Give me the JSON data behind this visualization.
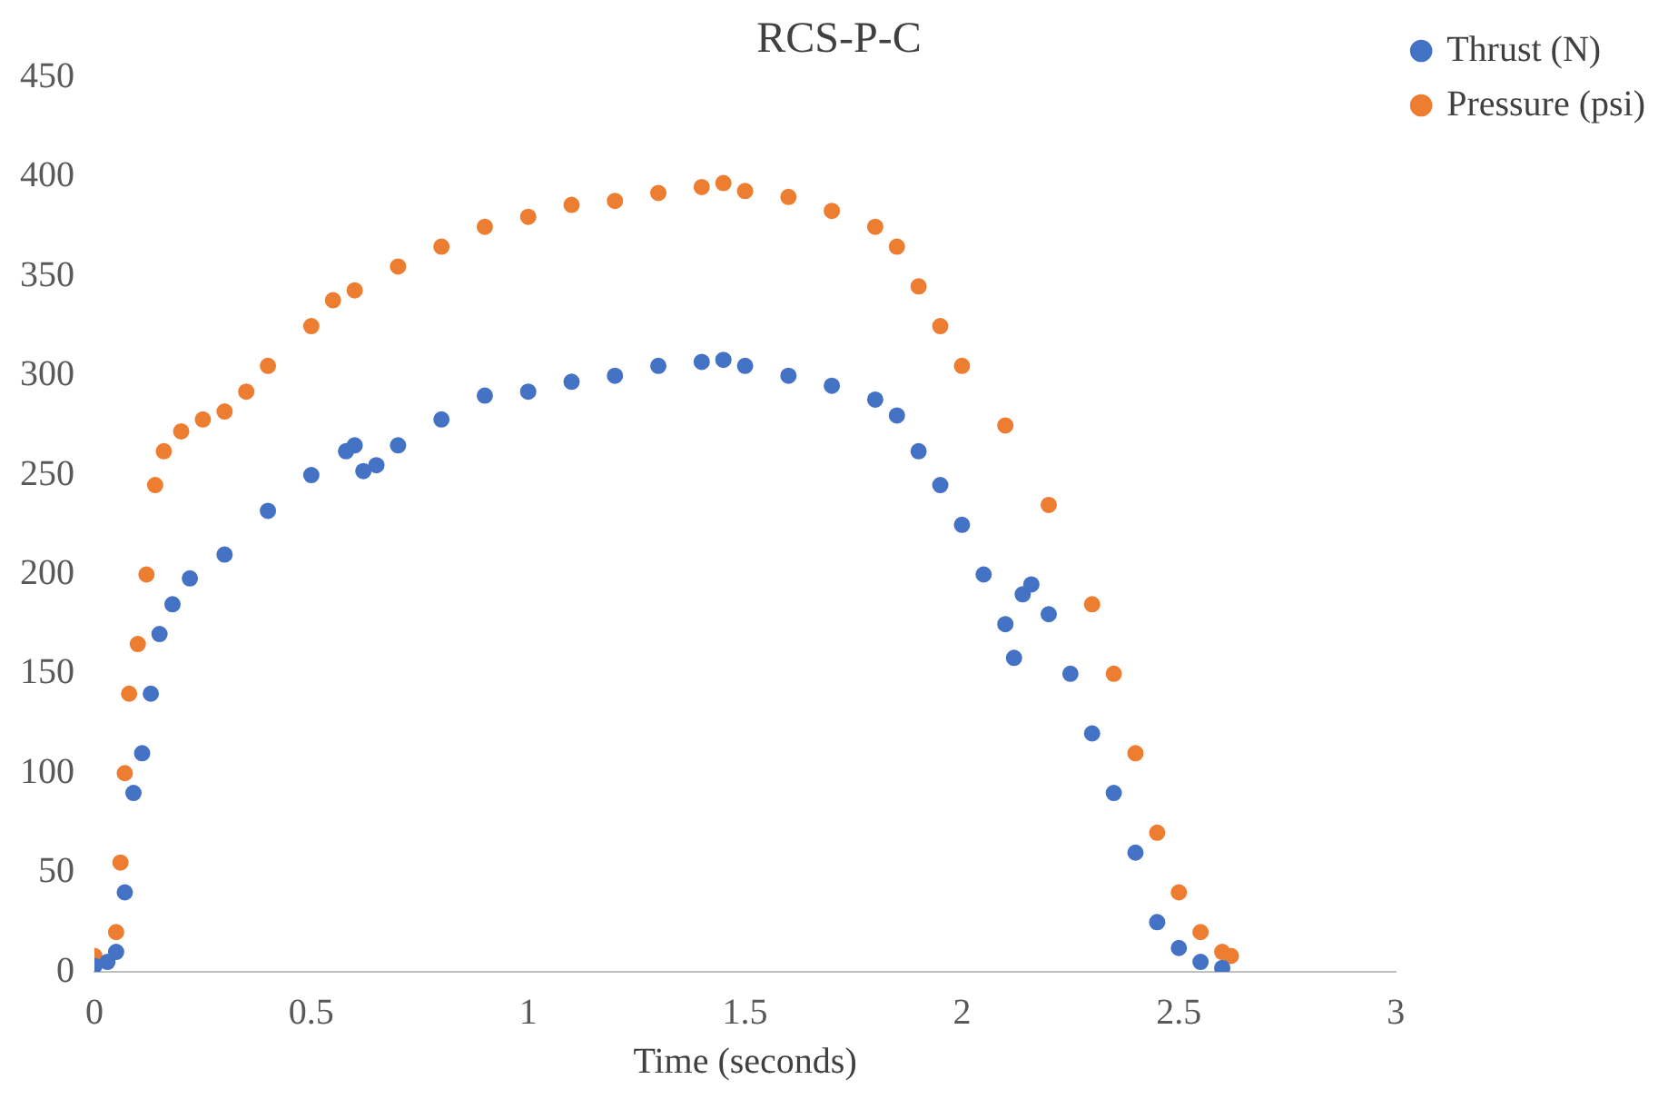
{
  "chart_data": {
    "type": "scatter",
    "title": "RCS-P-C",
    "xlabel": "Time (seconds)",
    "xlim": [
      0,
      3
    ],
    "xticks": [
      0,
      0.5,
      1,
      1.5,
      2,
      2.5,
      3
    ],
    "ylim": [
      0,
      450
    ],
    "yticks": [
      0,
      50,
      100,
      150,
      200,
      250,
      300,
      350,
      400,
      450
    ],
    "grid": false,
    "legend": "top right",
    "marker": "circle",
    "series": [
      {
        "name": "Thrust (N)",
        "color": "#4472c4",
        "x": [
          0,
          0.03,
          0.05,
          0.07,
          0.09,
          0.11,
          0.13,
          0.15,
          0.18,
          0.22,
          0.3,
          0.4,
          0.5,
          0.58,
          0.6,
          0.62,
          0.65,
          0.7,
          0.8,
          0.9,
          1.0,
          1.1,
          1.2,
          1.3,
          1.4,
          1.45,
          1.5,
          1.6,
          1.7,
          1.8,
          1.85,
          1.9,
          1.95,
          2.0,
          2.05,
          2.1,
          2.12,
          2.14,
          2.16,
          2.2,
          2.25,
          2.3,
          2.35,
          2.4,
          2.45,
          2.5,
          2.55,
          2.6
        ],
        "values": [
          3,
          5,
          10,
          40,
          90,
          110,
          140,
          170,
          185,
          198,
          210,
          232,
          250,
          262,
          265,
          252,
          255,
          265,
          278,
          290,
          292,
          297,
          300,
          305,
          307,
          308,
          305,
          300,
          295,
          288,
          280,
          262,
          245,
          225,
          200,
          175,
          158,
          190,
          195,
          180,
          150,
          120,
          90,
          60,
          25,
          12,
          5,
          2
        ]
      },
      {
        "name": "Pressure (psi)",
        "color": "#ed7d31",
        "x": [
          0,
          0.05,
          0.06,
          0.07,
          0.08,
          0.1,
          0.12,
          0.14,
          0.16,
          0.2,
          0.25,
          0.3,
          0.35,
          0.4,
          0.5,
          0.55,
          0.6,
          0.7,
          0.8,
          0.9,
          1.0,
          1.1,
          1.2,
          1.3,
          1.4,
          1.45,
          1.5,
          1.6,
          1.7,
          1.8,
          1.85,
          1.9,
          1.95,
          2.0,
          2.1,
          2.2,
          2.3,
          2.35,
          2.4,
          2.45,
          2.5,
          2.55,
          2.6,
          2.62
        ],
        "values": [
          8,
          20,
          55,
          100,
          140,
          165,
          200,
          245,
          262,
          272,
          278,
          282,
          292,
          305,
          325,
          338,
          343,
          355,
          365,
          375,
          380,
          386,
          388,
          392,
          395,
          397,
          393,
          390,
          383,
          375,
          365,
          345,
          325,
          305,
          275,
          235,
          185,
          150,
          110,
          70,
          40,
          20,
          10,
          8
        ]
      }
    ]
  }
}
